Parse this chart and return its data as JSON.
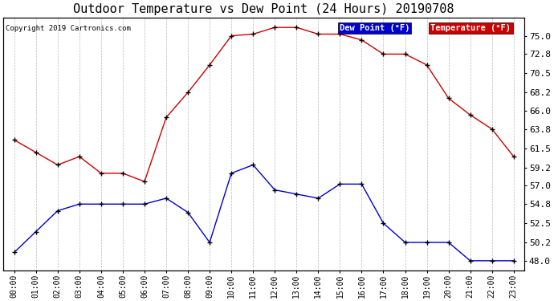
{
  "title": "Outdoor Temperature vs Dew Point (24 Hours) 20190708",
  "copyright": "Copyright 2019 Cartronics.com",
  "hours": [
    "00:00",
    "01:00",
    "02:00",
    "03:00",
    "04:00",
    "05:00",
    "06:00",
    "07:00",
    "08:00",
    "09:00",
    "10:00",
    "11:00",
    "12:00",
    "13:00",
    "14:00",
    "15:00",
    "16:00",
    "17:00",
    "18:00",
    "19:00",
    "20:00",
    "21:00",
    "22:00",
    "23:00"
  ],
  "temperature": [
    62.5,
    61.0,
    59.5,
    60.5,
    58.5,
    58.5,
    57.5,
    65.2,
    68.2,
    71.5,
    75.0,
    75.2,
    76.0,
    76.0,
    75.2,
    75.2,
    74.5,
    72.8,
    72.8,
    71.5,
    67.5,
    65.5,
    63.8,
    60.5
  ],
  "dew_point": [
    49.0,
    51.5,
    54.0,
    54.8,
    54.8,
    54.8,
    54.8,
    55.5,
    53.8,
    50.2,
    58.5,
    59.5,
    56.5,
    56.0,
    55.5,
    57.2,
    57.2,
    52.5,
    50.2,
    50.2,
    50.2,
    48.0,
    48.0,
    48.0
  ],
  "temp_color": "#cc0000",
  "dew_color": "#0000cc",
  "ylim_min": 46.8,
  "ylim_max": 77.2,
  "yticks": [
    48.0,
    50.2,
    52.5,
    54.8,
    57.0,
    59.2,
    61.5,
    63.8,
    66.0,
    68.2,
    70.5,
    72.8,
    75.0
  ],
  "background_color": "#ffffff",
  "grid_color": "#bbbbbb",
  "title_fontsize": 11,
  "legend_dew_label": "Dew Point (°F)",
  "legend_temp_label": "Temperature (°F)",
  "legend_dew_color": "#0000cc",
  "legend_temp_color": "#cc0000"
}
